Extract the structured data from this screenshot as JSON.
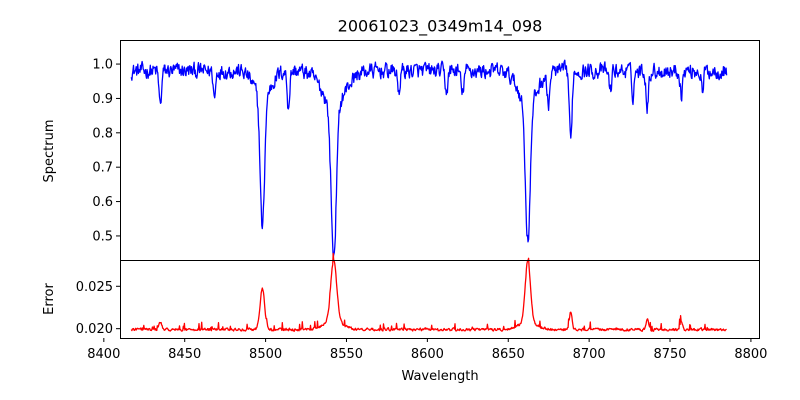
{
  "chart_data": [
    {
      "type": "line",
      "title": "20061023_0349m14_098",
      "xlabel": "",
      "ylabel": "Spectrum",
      "xlim": [
        8410,
        8805
      ],
      "ylim": [
        0.43,
        1.07
      ],
      "yticks": [
        0.5,
        0.6,
        0.7,
        0.8,
        0.9,
        1.0
      ],
      "ytick_labels": [
        "0.5",
        "0.6",
        "0.7",
        "0.8",
        "0.9",
        "1.0"
      ],
      "grid": false,
      "series": [
        {
          "color": "#0000ff",
          "x_range": [
            8417,
            8785
          ],
          "continuum": 0.98,
          "noise_amplitude": 0.035,
          "absorption_lines": [
            {
              "x": 8498.0,
              "depth": 0.38,
              "width": 1.3
            },
            {
              "x": 8498.0,
              "depth": 0.08,
              "width": 5.0
            },
            {
              "x": 8542.1,
              "depth": 0.44,
              "width": 1.6
            },
            {
              "x": 8542.1,
              "depth": 0.1,
              "width": 7.0
            },
            {
              "x": 8662.1,
              "depth": 0.4,
              "width": 1.5
            },
            {
              "x": 8662.1,
              "depth": 0.09,
              "width": 6.0
            },
            {
              "x": 8688.6,
              "depth": 0.21,
              "width": 0.8
            },
            {
              "x": 8434.9,
              "depth": 0.1,
              "width": 0.8
            },
            {
              "x": 8468.4,
              "depth": 0.08,
              "width": 0.7
            },
            {
              "x": 8514.1,
              "depth": 0.1,
              "width": 0.8
            },
            {
              "x": 8582.3,
              "depth": 0.06,
              "width": 0.8
            },
            {
              "x": 8611.8,
              "depth": 0.06,
              "width": 0.8
            },
            {
              "x": 8621.6,
              "depth": 0.07,
              "width": 0.8
            },
            {
              "x": 8674.8,
              "depth": 0.09,
              "width": 0.8
            },
            {
              "x": 8713.0,
              "depth": 0.06,
              "width": 0.7
            },
            {
              "x": 8727.1,
              "depth": 0.07,
              "width": 0.7
            },
            {
              "x": 8736.0,
              "depth": 0.1,
              "width": 0.8
            },
            {
              "x": 8757.0,
              "depth": 0.07,
              "width": 0.7
            },
            {
              "x": 8770.0,
              "depth": 0.06,
              "width": 0.7
            }
          ]
        }
      ]
    },
    {
      "type": "line",
      "title": "",
      "xlabel": "Wavelength",
      "ylabel": "Error",
      "xlim": [
        8410,
        8805
      ],
      "ylim": [
        0.0189,
        0.0281
      ],
      "xticks": [
        8400,
        8450,
        8500,
        8550,
        8600,
        8650,
        8700,
        8750,
        8800
      ],
      "xtick_labels": [
        "8400",
        "8450",
        "8500",
        "8550",
        "8600",
        "8650",
        "8700",
        "8750",
        "8800"
      ],
      "yticks": [
        0.02,
        0.025
      ],
      "ytick_labels": [
        "0.020",
        "0.025"
      ],
      "grid": false,
      "series": [
        {
          "color": "#ff0000",
          "x_range": [
            8417,
            8785
          ],
          "baseline": 0.0199,
          "noise_amplitude": 0.00025,
          "emission_lines": [
            {
              "x": 8498.0,
              "height": 0.0048,
              "width": 1.4
            },
            {
              "x": 8542.1,
              "height": 0.0072,
              "width": 1.8
            },
            {
              "x": 8542.1,
              "height": 0.001,
              "width": 6.0
            },
            {
              "x": 8662.1,
              "height": 0.0073,
              "width": 1.6
            },
            {
              "x": 8662.1,
              "height": 0.0008,
              "width": 5.5
            },
            {
              "x": 8688.6,
              "height": 0.002,
              "width": 0.8
            },
            {
              "x": 8434.9,
              "height": 0.0009,
              "width": 0.8
            },
            {
              "x": 8736.0,
              "height": 0.0012,
              "width": 0.8
            },
            {
              "x": 8757.0,
              "height": 0.001,
              "width": 0.8
            }
          ]
        }
      ]
    }
  ]
}
